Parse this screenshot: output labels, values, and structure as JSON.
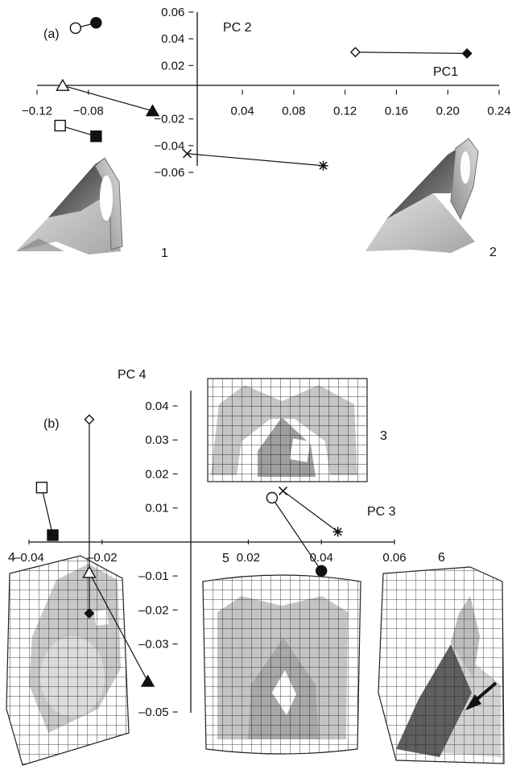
{
  "figure": {
    "thumb_labels": [
      "1",
      "2",
      "3",
      "4",
      "5",
      "6"
    ]
  },
  "chart_data": [
    {
      "type": "scatter",
      "panel_label": "(a)",
      "xlabel": "PC1",
      "ylabel": "PC 2",
      "xlim": [
        -0.12,
        0.24
      ],
      "ylim": [
        -0.06,
        0.06
      ],
      "x_ticks": [
        "−0.12",
        "−0.08",
        "0.04",
        "0.08",
        "0.12",
        "0.16",
        "0.20",
        "0.24"
      ],
      "y_ticks": [
        "0.06",
        "0.04",
        "0.02",
        "−0.02",
        "−0.04",
        "−0.06"
      ],
      "grid": false,
      "pairs": [
        {
          "marker_open": "circle",
          "marker_filled": "circle",
          "open": [
            -0.09,
            0.048
          ],
          "filled": [
            -0.074,
            0.052
          ]
        },
        {
          "marker_open": "diamond",
          "marker_filled": "diamond",
          "open": [
            0.128,
            0.03
          ],
          "filled": [
            0.215,
            0.029
          ]
        },
        {
          "marker_open": "triangle",
          "marker_filled": "triangle",
          "open": [
            -0.1,
            0.005
          ],
          "filled": [
            -0.03,
            -0.014
          ]
        },
        {
          "marker_open": "square",
          "marker_filled": "square",
          "open": [
            -0.102,
            -0.025
          ],
          "filled": [
            -0.074,
            -0.033
          ]
        },
        {
          "marker_open": "x",
          "marker_filled": "asterisk",
          "open": [
            -0.003,
            -0.046
          ],
          "filled": [
            0.103,
            -0.055
          ]
        }
      ]
    },
    {
      "type": "scatter",
      "panel_label": "(b)",
      "xlabel": "PC 3",
      "ylabel": "PC 4",
      "xlim": [
        -0.04,
        0.06
      ],
      "ylim": [
        -0.05,
        0.04
      ],
      "x_ticks": [
        "–0.04",
        "–0.02",
        "0.02",
        "0.04",
        "0.06"
      ],
      "y_ticks": [
        "0.04",
        "0.03",
        "0.02",
        "0.01",
        "–0.01",
        "–0.02",
        "–0.03",
        "–0.05"
      ],
      "grid": false,
      "pairs": [
        {
          "marker_open": "square",
          "marker_filled": "square",
          "open": [
            -0.0365,
            0.016
          ],
          "filled": [
            -0.0335,
            0.002
          ]
        },
        {
          "marker_open": "diamond",
          "marker_filled": "diamond",
          "open": [
            -0.0235,
            0.036
          ],
          "filled": [
            -0.0235,
            -0.021
          ]
        },
        {
          "marker_open": "triangle",
          "marker_filled": "triangle",
          "open": [
            -0.0235,
            -0.009
          ],
          "filled": [
            -0.0075,
            -0.041
          ]
        },
        {
          "marker_open": "circle",
          "marker_filled": "circle",
          "open": [
            0.0265,
            0.013
          ],
          "filled": [
            0.04,
            -0.0085
          ]
        },
        {
          "marker_open": "x",
          "marker_filled": "asterisk",
          "open": [
            0.0295,
            0.015
          ],
          "filled": [
            0.0445,
            0.003
          ]
        }
      ]
    }
  ]
}
